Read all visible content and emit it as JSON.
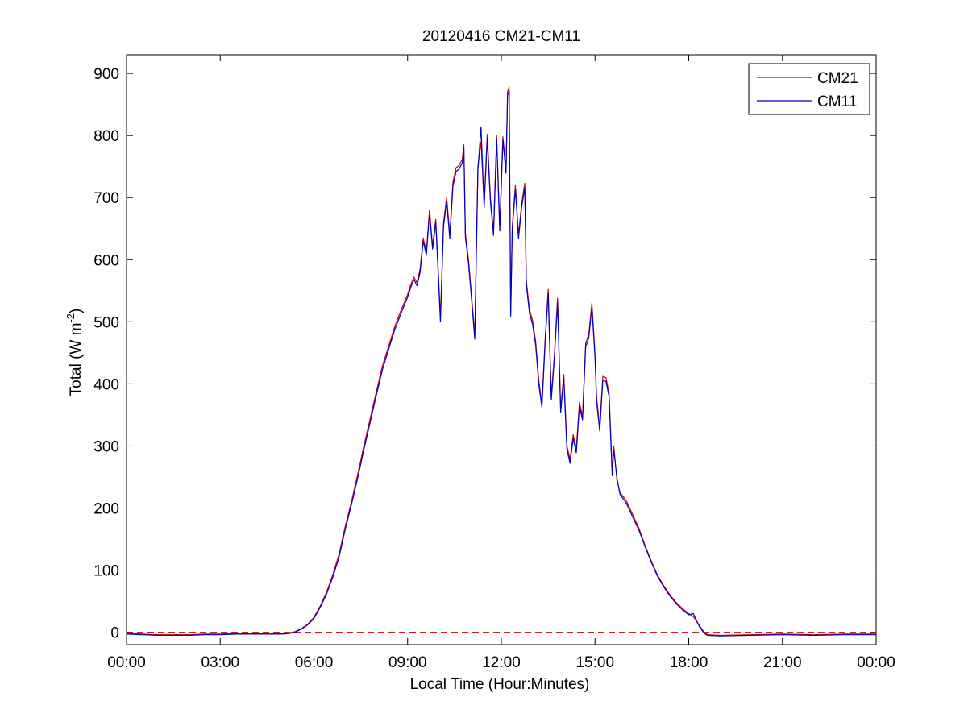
{
  "chart_data": {
    "type": "line",
    "title": "20120416 CM21-CM11",
    "xlabel": "Local Time (Hour:Minutes)",
    "ylabel": {
      "base": "Total (W m",
      "sup": "-2",
      "end": ")"
    },
    "xlim": [
      "00:00",
      "24:00"
    ],
    "ylim": [
      -20,
      930
    ],
    "x_ticks": [
      {
        "hour": 0,
        "label": "00:00"
      },
      {
        "hour": 3,
        "label": "03:00"
      },
      {
        "hour": 6,
        "label": "06:00"
      },
      {
        "hour": 9,
        "label": "09:00"
      },
      {
        "hour": 12,
        "label": "12:00"
      },
      {
        "hour": 15,
        "label": "15:00"
      },
      {
        "hour": 18,
        "label": "18:00"
      },
      {
        "hour": 21,
        "label": "21:00"
      },
      {
        "hour": 24,
        "label": "00:00"
      }
    ],
    "y_ticks": [
      0,
      100,
      200,
      300,
      400,
      500,
      600,
      700,
      800,
      900
    ],
    "grid": false,
    "legend_position": "top-right",
    "reference_line": {
      "y": 0,
      "style": "dashed",
      "color": "#c00000"
    },
    "x_unit": "hours",
    "series": [
      {
        "name": "CM21",
        "color": "#d00000",
        "points": [
          [
            0.0,
            -2
          ],
          [
            0.5,
            -3
          ],
          [
            1.0,
            -4
          ],
          [
            1.5,
            -4
          ],
          [
            2.0,
            -4
          ],
          [
            2.5,
            -3
          ],
          [
            3.0,
            -3
          ],
          [
            3.5,
            -2
          ],
          [
            4.0,
            -2
          ],
          [
            4.5,
            -2
          ],
          [
            5.0,
            -2
          ],
          [
            5.2,
            -1
          ],
          [
            5.4,
            1
          ],
          [
            5.6,
            6
          ],
          [
            5.8,
            13
          ],
          [
            6.0,
            24
          ],
          [
            6.2,
            42
          ],
          [
            6.4,
            64
          ],
          [
            6.6,
            92
          ],
          [
            6.8,
            125
          ],
          [
            7.0,
            170
          ],
          [
            7.2,
            210
          ],
          [
            7.4,
            254
          ],
          [
            7.6,
            300
          ],
          [
            7.8,
            344
          ],
          [
            8.0,
            388
          ],
          [
            8.2,
            430
          ],
          [
            8.4,
            462
          ],
          [
            8.6,
            494
          ],
          [
            8.8,
            520
          ],
          [
            9.0,
            544
          ],
          [
            9.1,
            560
          ],
          [
            9.2,
            572
          ],
          [
            9.3,
            563
          ],
          [
            9.4,
            585
          ],
          [
            9.5,
            635
          ],
          [
            9.6,
            612
          ],
          [
            9.7,
            680
          ],
          [
            9.8,
            622
          ],
          [
            9.9,
            665
          ],
          [
            10.0,
            562
          ],
          [
            10.05,
            506
          ],
          [
            10.15,
            660
          ],
          [
            10.25,
            700
          ],
          [
            10.35,
            640
          ],
          [
            10.45,
            724
          ],
          [
            10.55,
            748
          ],
          [
            10.65,
            752
          ],
          [
            10.75,
            762
          ],
          [
            10.8,
            785
          ],
          [
            10.85,
            642
          ],
          [
            10.95,
            600
          ],
          [
            11.05,
            540
          ],
          [
            11.15,
            478
          ],
          [
            11.25,
            750
          ],
          [
            11.35,
            790
          ],
          [
            11.45,
            690
          ],
          [
            11.55,
            802
          ],
          [
            11.65,
            700
          ],
          [
            11.75,
            645
          ],
          [
            11.85,
            800
          ],
          [
            11.95,
            652
          ],
          [
            12.05,
            798
          ],
          [
            12.15,
            745
          ],
          [
            12.2,
            870
          ],
          [
            12.25,
            878
          ],
          [
            12.3,
            515
          ],
          [
            12.35,
            654
          ],
          [
            12.45,
            720
          ],
          [
            12.55,
            640
          ],
          [
            12.65,
            690
          ],
          [
            12.75,
            723
          ],
          [
            12.8,
            566
          ],
          [
            12.9,
            520
          ],
          [
            13.0,
            502
          ],
          [
            13.1,
            468
          ],
          [
            13.2,
            405
          ],
          [
            13.3,
            368
          ],
          [
            13.4,
            470
          ],
          [
            13.5,
            552
          ],
          [
            13.6,
            380
          ],
          [
            13.7,
            448
          ],
          [
            13.8,
            538
          ],
          [
            13.9,
            360
          ],
          [
            14.0,
            415
          ],
          [
            14.1,
            300
          ],
          [
            14.2,
            278
          ],
          [
            14.3,
            318
          ],
          [
            14.4,
            295
          ],
          [
            14.5,
            370
          ],
          [
            14.6,
            348
          ],
          [
            14.7,
            465
          ],
          [
            14.8,
            480
          ],
          [
            14.9,
            530
          ],
          [
            15.0,
            448
          ],
          [
            15.05,
            378
          ],
          [
            15.15,
            330
          ],
          [
            15.25,
            412
          ],
          [
            15.35,
            410
          ],
          [
            15.45,
            385
          ],
          [
            15.55,
            258
          ],
          [
            15.6,
            300
          ],
          [
            15.7,
            245
          ],
          [
            15.8,
            225
          ],
          [
            16.0,
            212
          ],
          [
            16.2,
            190
          ],
          [
            16.4,
            168
          ],
          [
            16.6,
            140
          ],
          [
            16.8,
            115
          ],
          [
            17.0,
            92
          ],
          [
            17.2,
            75
          ],
          [
            17.4,
            60
          ],
          [
            17.6,
            48
          ],
          [
            17.8,
            38
          ],
          [
            18.0,
            30
          ],
          [
            18.15,
            25
          ],
          [
            18.35,
            10
          ],
          [
            18.5,
            0
          ],
          [
            18.6,
            -4
          ],
          [
            19.0,
            -5
          ],
          [
            20.0,
            -4
          ],
          [
            21.0,
            -3
          ],
          [
            22.0,
            -4
          ],
          [
            23.0,
            -3
          ],
          [
            24.0,
            -3
          ]
        ]
      },
      {
        "name": "CM11",
        "color": "#0000cc",
        "points": [
          [
            0.0,
            -3
          ],
          [
            0.5,
            -4
          ],
          [
            1.0,
            -5
          ],
          [
            1.5,
            -5
          ],
          [
            2.0,
            -5
          ],
          [
            2.5,
            -4
          ],
          [
            3.0,
            -4
          ],
          [
            3.5,
            -3
          ],
          [
            4.0,
            -3
          ],
          [
            4.5,
            -3
          ],
          [
            5.0,
            -3
          ],
          [
            5.2,
            -2
          ],
          [
            5.4,
            0
          ],
          [
            5.6,
            5
          ],
          [
            5.8,
            12
          ],
          [
            6.0,
            22
          ],
          [
            6.2,
            40
          ],
          [
            6.4,
            61
          ],
          [
            6.6,
            88
          ],
          [
            6.8,
            120
          ],
          [
            7.0,
            165
          ],
          [
            7.2,
            205
          ],
          [
            7.4,
            248
          ],
          [
            7.6,
            294
          ],
          [
            7.8,
            338
          ],
          [
            8.0,
            382
          ],
          [
            8.2,
            424
          ],
          [
            8.4,
            457
          ],
          [
            8.6,
            489
          ],
          [
            8.8,
            515
          ],
          [
            9.0,
            540
          ],
          [
            9.1,
            555
          ],
          [
            9.2,
            568
          ],
          [
            9.3,
            558
          ],
          [
            9.4,
            580
          ],
          [
            9.5,
            630
          ],
          [
            9.6,
            607
          ],
          [
            9.7,
            674
          ],
          [
            9.8,
            617
          ],
          [
            9.9,
            660
          ],
          [
            10.0,
            556
          ],
          [
            10.05,
            500
          ],
          [
            10.15,
            654
          ],
          [
            10.25,
            694
          ],
          [
            10.35,
            634
          ],
          [
            10.45,
            718
          ],
          [
            10.55,
            742
          ],
          [
            10.65,
            746
          ],
          [
            10.75,
            756
          ],
          [
            10.8,
            780
          ],
          [
            10.85,
            636
          ],
          [
            10.95,
            594
          ],
          [
            11.05,
            534
          ],
          [
            11.15,
            472
          ],
          [
            11.25,
            744
          ],
          [
            11.35,
            814
          ],
          [
            11.45,
            684
          ],
          [
            11.55,
            796
          ],
          [
            11.65,
            694
          ],
          [
            11.75,
            639
          ],
          [
            11.85,
            794
          ],
          [
            11.95,
            646
          ],
          [
            12.05,
            792
          ],
          [
            12.15,
            739
          ],
          [
            12.2,
            864
          ],
          [
            12.25,
            872
          ],
          [
            12.3,
            509
          ],
          [
            12.35,
            648
          ],
          [
            12.45,
            714
          ],
          [
            12.55,
            634
          ],
          [
            12.65,
            684
          ],
          [
            12.75,
            716
          ],
          [
            12.8,
            560
          ],
          [
            12.9,
            514
          ],
          [
            13.0,
            496
          ],
          [
            13.1,
            462
          ],
          [
            13.2,
            399
          ],
          [
            13.3,
            362
          ],
          [
            13.4,
            464
          ],
          [
            13.5,
            546
          ],
          [
            13.6,
            374
          ],
          [
            13.7,
            442
          ],
          [
            13.8,
            532
          ],
          [
            13.9,
            354
          ],
          [
            14.0,
            409
          ],
          [
            14.1,
            294
          ],
          [
            14.2,
            272
          ],
          [
            14.3,
            312
          ],
          [
            14.4,
            289
          ],
          [
            14.5,
            364
          ],
          [
            14.6,
            342
          ],
          [
            14.7,
            459
          ],
          [
            14.8,
            474
          ],
          [
            14.9,
            524
          ],
          [
            15.0,
            442
          ],
          [
            15.05,
            372
          ],
          [
            15.15,
            324
          ],
          [
            15.25,
            406
          ],
          [
            15.35,
            404
          ],
          [
            15.45,
            379
          ],
          [
            15.55,
            252
          ],
          [
            15.6,
            294
          ],
          [
            15.7,
            249
          ],
          [
            15.8,
            222
          ],
          [
            16.0,
            208
          ],
          [
            16.2,
            186
          ],
          [
            16.4,
            165
          ],
          [
            16.6,
            138
          ],
          [
            16.8,
            113
          ],
          [
            17.0,
            90
          ],
          [
            17.2,
            73
          ],
          [
            17.4,
            58
          ],
          [
            17.6,
            46
          ],
          [
            17.8,
            36
          ],
          [
            18.0,
            28
          ],
          [
            18.15,
            30
          ],
          [
            18.35,
            8
          ],
          [
            18.5,
            -2
          ],
          [
            18.6,
            -5
          ],
          [
            19.0,
            -6
          ],
          [
            20.0,
            -5
          ],
          [
            21.0,
            -4
          ],
          [
            22.0,
            -5
          ],
          [
            23.0,
            -4
          ],
          [
            24.0,
            -4
          ]
        ]
      }
    ]
  }
}
